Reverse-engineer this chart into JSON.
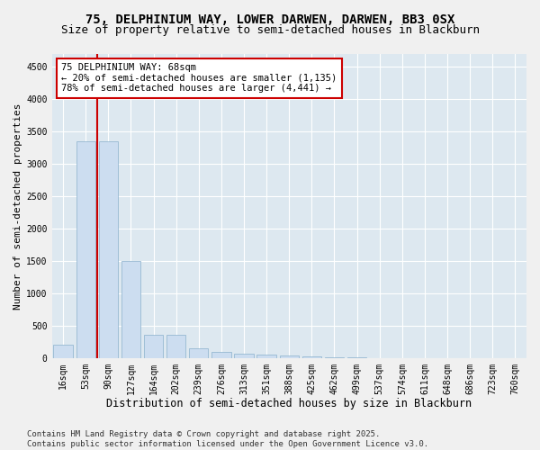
{
  "title_line1": "75, DELPHINIUM WAY, LOWER DARWEN, DARWEN, BB3 0SX",
  "title_line2": "Size of property relative to semi-detached houses in Blackburn",
  "xlabel": "Distribution of semi-detached houses by size in Blackburn",
  "ylabel": "Number of semi-detached properties",
  "categories": [
    "16sqm",
    "53sqm",
    "90sqm",
    "127sqm",
    "164sqm",
    "202sqm",
    "239sqm",
    "276sqm",
    "313sqm",
    "351sqm",
    "388sqm",
    "425sqm",
    "462sqm",
    "499sqm",
    "537sqm",
    "574sqm",
    "611sqm",
    "648sqm",
    "686sqm",
    "723sqm",
    "760sqm"
  ],
  "values": [
    200,
    3350,
    3350,
    1500,
    360,
    360,
    150,
    90,
    65,
    45,
    35,
    25,
    15,
    5,
    2,
    0,
    0,
    0,
    0,
    0,
    0
  ],
  "bar_color": "#ccddf0",
  "bar_edge_color": "#8ab0cc",
  "vline_color": "#cc0000",
  "vline_x": 1.5,
  "annotation_text": "75 DELPHINIUM WAY: 68sqm\n← 20% of semi-detached houses are smaller (1,135)\n78% of semi-detached houses are larger (4,441) →",
  "annotation_box_facecolor": "#ffffff",
  "annotation_box_edgecolor": "#cc0000",
  "ylim": [
    0,
    4700
  ],
  "yticks": [
    0,
    500,
    1000,
    1500,
    2000,
    2500,
    3000,
    3500,
    4000,
    4500
  ],
  "bg_color": "#dde8f0",
  "fig_facecolor": "#f0f0f0",
  "title_fontsize": 10,
  "subtitle_fontsize": 9,
  "xlabel_fontsize": 8.5,
  "ylabel_fontsize": 8,
  "tick_fontsize": 7,
  "annotation_fontsize": 7.5,
  "footer_fontsize": 6.5,
  "footer_text": "Contains HM Land Registry data © Crown copyright and database right 2025.\nContains public sector information licensed under the Open Government Licence v3.0."
}
